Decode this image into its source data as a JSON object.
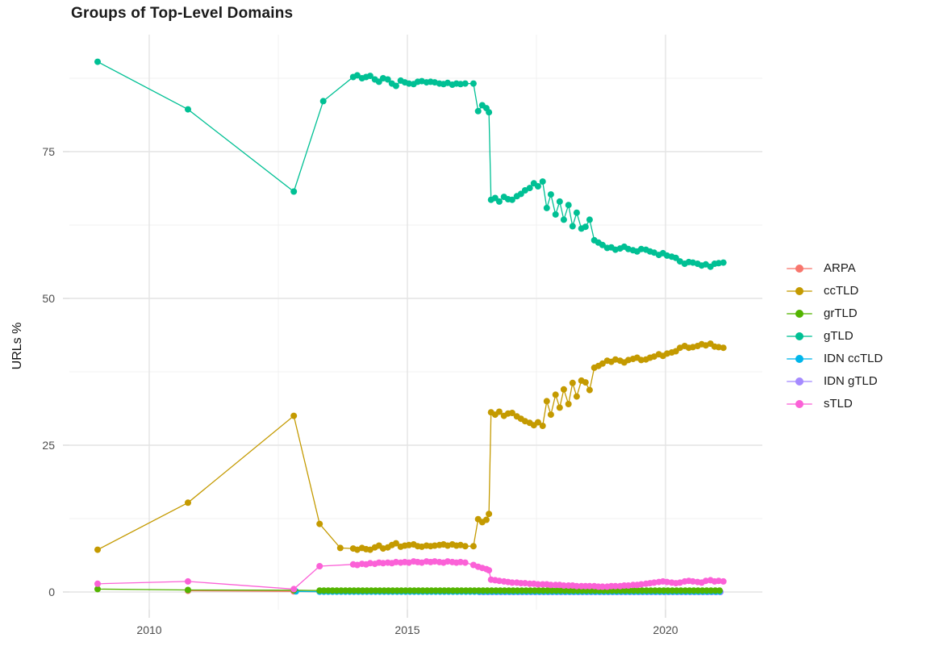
{
  "page": {
    "title": "Groups of Top-Level Domains"
  },
  "colors": {
    "background": "#FFFFFF",
    "grid_major": "#E4E4E4",
    "grid_minor": "#F1F1F1",
    "axis_tick": "#DCDCDC",
    "tick_label": "#4D4D4D",
    "title_text": "#1A1A1A"
  },
  "chart_data": {
    "type": "line",
    "title": "Groups of Top-Level Domains",
    "xlabel": "",
    "ylabel": "URLs %",
    "xlim": [
      2008.3,
      2021.9
    ],
    "ylim": [
      -3,
      95
    ],
    "x_ticks": [
      2010,
      2015,
      2020
    ],
    "y_ticks": [
      0,
      25,
      50,
      75
    ],
    "x_minor_gridlines": [
      2012.5,
      2017.5
    ],
    "y_minor_gridlines": [
      12.5,
      37.5,
      62.5,
      87.5
    ],
    "grid": "on",
    "legend_position": "right",
    "series": [
      {
        "name": "ARPA",
        "color": "#F8766D",
        "points": [
          [
            2010.75,
            0.2
          ],
          [
            2012.8,
            0.1
          ]
        ],
        "repeat": {
          "from": 2013.3,
          "to": 2021.12,
          "step": 0.0833,
          "value": 0.05
        }
      },
      {
        "name": "ccTLD",
        "color": "#C49A00",
        "points": [
          [
            2009,
            7.2
          ],
          [
            2010.75,
            15.2
          ],
          [
            2012.8,
            30.0
          ],
          [
            2013.3,
            11.6
          ],
          [
            2013.7,
            7.5
          ],
          [
            2013.95,
            7.4
          ],
          [
            2014.03,
            7.2
          ],
          [
            2014.12,
            7.5
          ],
          [
            2014.2,
            7.3
          ],
          [
            2014.28,
            7.2
          ],
          [
            2014.37,
            7.6
          ],
          [
            2014.45,
            7.9
          ],
          [
            2014.53,
            7.4
          ],
          [
            2014.62,
            7.6
          ],
          [
            2014.7,
            8.0
          ],
          [
            2014.78,
            8.3
          ],
          [
            2014.87,
            7.7
          ],
          [
            2014.95,
            7.9
          ],
          [
            2015.03,
            8.0
          ],
          [
            2015.12,
            8.1
          ],
          [
            2015.2,
            7.8
          ],
          [
            2015.28,
            7.7
          ],
          [
            2015.37,
            7.9
          ],
          [
            2015.45,
            7.8
          ],
          [
            2015.53,
            7.9
          ],
          [
            2015.62,
            8.0
          ],
          [
            2015.7,
            8.1
          ],
          [
            2015.78,
            7.9
          ],
          [
            2015.87,
            8.1
          ],
          [
            2015.95,
            7.9
          ],
          [
            2016.03,
            8.0
          ],
          [
            2016.12,
            7.8
          ],
          [
            2016.28,
            7.8
          ],
          [
            2016.37,
            12.4
          ],
          [
            2016.45,
            11.9
          ],
          [
            2016.53,
            12.3
          ],
          [
            2016.58,
            13.3
          ],
          [
            2016.62,
            30.6
          ],
          [
            2016.7,
            30.2
          ],
          [
            2016.78,
            30.7
          ],
          [
            2016.87,
            30.0
          ],
          [
            2016.95,
            30.4
          ],
          [
            2017.03,
            30.5
          ],
          [
            2017.12,
            29.9
          ],
          [
            2017.2,
            29.5
          ],
          [
            2017.28,
            29.1
          ],
          [
            2017.37,
            28.8
          ],
          [
            2017.45,
            28.4
          ],
          [
            2017.53,
            28.9
          ],
          [
            2017.62,
            28.3
          ],
          [
            2017.7,
            32.5
          ],
          [
            2017.78,
            30.2
          ],
          [
            2017.87,
            33.6
          ],
          [
            2017.95,
            31.4
          ],
          [
            2018.03,
            34.5
          ],
          [
            2018.12,
            32.0
          ],
          [
            2018.2,
            35.6
          ],
          [
            2018.28,
            33.3
          ],
          [
            2018.37,
            36.0
          ],
          [
            2018.45,
            35.7
          ],
          [
            2018.53,
            34.4
          ],
          [
            2018.62,
            38.2
          ],
          [
            2018.7,
            38.5
          ],
          [
            2018.78,
            38.9
          ],
          [
            2018.87,
            39.4
          ],
          [
            2018.95,
            39.2
          ],
          [
            2019.03,
            39.6
          ],
          [
            2019.12,
            39.4
          ],
          [
            2019.2,
            39.1
          ],
          [
            2019.28,
            39.5
          ],
          [
            2019.37,
            39.7
          ],
          [
            2019.45,
            39.9
          ],
          [
            2019.53,
            39.5
          ],
          [
            2019.62,
            39.6
          ],
          [
            2019.7,
            39.9
          ],
          [
            2019.78,
            40.1
          ],
          [
            2019.87,
            40.5
          ],
          [
            2019.95,
            40.2
          ],
          [
            2020.03,
            40.6
          ],
          [
            2020.12,
            40.8
          ],
          [
            2020.2,
            41.0
          ],
          [
            2020.28,
            41.6
          ],
          [
            2020.37,
            41.9
          ],
          [
            2020.45,
            41.6
          ],
          [
            2020.53,
            41.7
          ],
          [
            2020.62,
            41.9
          ],
          [
            2020.7,
            42.2
          ],
          [
            2020.78,
            42.0
          ],
          [
            2020.87,
            42.3
          ],
          [
            2020.95,
            41.8
          ],
          [
            2021.03,
            41.7
          ],
          [
            2021.12,
            41.6
          ]
        ]
      },
      {
        "name": "grTLD",
        "color": "#53B400",
        "points": [
          [
            2009,
            0.5
          ],
          [
            2010.75,
            0.35
          ],
          [
            2012.8,
            0.3
          ]
        ],
        "repeat": {
          "from": 2013.3,
          "to": 2021.12,
          "step": 0.0833,
          "value": 0.25
        }
      },
      {
        "name": "gTLD",
        "color": "#00C094",
        "points": [
          [
            2009,
            90.3
          ],
          [
            2010.75,
            82.2
          ],
          [
            2012.8,
            68.2
          ],
          [
            2013.37,
            83.6
          ],
          [
            2013.95,
            87.7
          ],
          [
            2014.03,
            88.0
          ],
          [
            2014.12,
            87.5
          ],
          [
            2014.2,
            87.7
          ],
          [
            2014.28,
            87.9
          ],
          [
            2014.37,
            87.3
          ],
          [
            2014.45,
            86.9
          ],
          [
            2014.53,
            87.5
          ],
          [
            2014.62,
            87.3
          ],
          [
            2014.7,
            86.6
          ],
          [
            2014.78,
            86.2
          ],
          [
            2014.87,
            87.1
          ],
          [
            2014.95,
            86.8
          ],
          [
            2015.03,
            86.6
          ],
          [
            2015.12,
            86.5
          ],
          [
            2015.2,
            86.9
          ],
          [
            2015.28,
            87.0
          ],
          [
            2015.37,
            86.8
          ],
          [
            2015.45,
            86.9
          ],
          [
            2015.53,
            86.8
          ],
          [
            2015.62,
            86.6
          ],
          [
            2015.7,
            86.5
          ],
          [
            2015.78,
            86.7
          ],
          [
            2015.87,
            86.4
          ],
          [
            2015.95,
            86.6
          ],
          [
            2016.03,
            86.5
          ],
          [
            2016.12,
            86.6
          ],
          [
            2016.28,
            86.6
          ],
          [
            2016.37,
            81.9
          ],
          [
            2016.45,
            82.9
          ],
          [
            2016.53,
            82.4
          ],
          [
            2016.58,
            81.7
          ],
          [
            2016.62,
            66.8
          ],
          [
            2016.7,
            67.1
          ],
          [
            2016.78,
            66.5
          ],
          [
            2016.87,
            67.3
          ],
          [
            2016.95,
            66.9
          ],
          [
            2017.03,
            66.8
          ],
          [
            2017.12,
            67.4
          ],
          [
            2017.2,
            67.8
          ],
          [
            2017.28,
            68.4
          ],
          [
            2017.37,
            68.8
          ],
          [
            2017.45,
            69.6
          ],
          [
            2017.53,
            69.1
          ],
          [
            2017.62,
            69.9
          ],
          [
            2017.7,
            65.4
          ],
          [
            2017.78,
            67.7
          ],
          [
            2017.87,
            64.3
          ],
          [
            2017.95,
            66.5
          ],
          [
            2018.03,
            63.4
          ],
          [
            2018.12,
            65.9
          ],
          [
            2018.2,
            62.3
          ],
          [
            2018.28,
            64.6
          ],
          [
            2018.37,
            61.9
          ],
          [
            2018.45,
            62.2
          ],
          [
            2018.53,
            63.4
          ],
          [
            2018.62,
            59.9
          ],
          [
            2018.7,
            59.5
          ],
          [
            2018.78,
            59.1
          ],
          [
            2018.87,
            58.6
          ],
          [
            2018.95,
            58.7
          ],
          [
            2019.03,
            58.3
          ],
          [
            2019.12,
            58.5
          ],
          [
            2019.2,
            58.8
          ],
          [
            2019.28,
            58.4
          ],
          [
            2019.37,
            58.2
          ],
          [
            2019.45,
            58.0
          ],
          [
            2019.53,
            58.4
          ],
          [
            2019.62,
            58.3
          ],
          [
            2019.7,
            58.0
          ],
          [
            2019.78,
            57.8
          ],
          [
            2019.87,
            57.4
          ],
          [
            2019.95,
            57.7
          ],
          [
            2020.03,
            57.3
          ],
          [
            2020.12,
            57.1
          ],
          [
            2020.2,
            56.9
          ],
          [
            2020.28,
            56.3
          ],
          [
            2020.37,
            55.9
          ],
          [
            2020.45,
            56.2
          ],
          [
            2020.53,
            56.1
          ],
          [
            2020.62,
            55.9
          ],
          [
            2020.7,
            55.6
          ],
          [
            2020.78,
            55.8
          ],
          [
            2020.87,
            55.4
          ],
          [
            2020.95,
            55.9
          ],
          [
            2021.03,
            56.0
          ],
          [
            2021.12,
            56.1
          ]
        ]
      },
      {
        "name": "IDN ccTLD",
        "color": "#00B6EB",
        "points": [
          [
            2012.84,
            0.1
          ]
        ],
        "repeat": {
          "from": 2013.3,
          "to": 2021.12,
          "step": 0.0833,
          "value": 0.05
        }
      },
      {
        "name": "IDN gTLD",
        "color": "#A58AFF",
        "points": [],
        "repeat": {
          "from": 2016.4,
          "to": 2021.12,
          "step": 0.0833,
          "value": 0.0
        }
      },
      {
        "name": "sTLD",
        "color": "#FB61D7",
        "points": [
          [
            2009,
            1.4
          ],
          [
            2010.75,
            1.8
          ],
          [
            2012.8,
            0.5
          ],
          [
            2013.3,
            4.4
          ],
          [
            2013.95,
            4.7
          ],
          [
            2014.03,
            4.6
          ],
          [
            2014.12,
            4.8
          ],
          [
            2014.2,
            4.7
          ],
          [
            2014.28,
            4.9
          ],
          [
            2014.37,
            4.8
          ],
          [
            2014.45,
            5.0
          ],
          [
            2014.53,
            4.9
          ],
          [
            2014.62,
            5.0
          ],
          [
            2014.7,
            4.9
          ],
          [
            2014.78,
            5.1
          ],
          [
            2014.87,
            5.0
          ],
          [
            2014.95,
            5.1
          ],
          [
            2015.03,
            5.0
          ],
          [
            2015.12,
            5.2
          ],
          [
            2015.2,
            5.1
          ],
          [
            2015.28,
            5.0
          ],
          [
            2015.37,
            5.2
          ],
          [
            2015.45,
            5.1
          ],
          [
            2015.53,
            5.2
          ],
          [
            2015.62,
            5.1
          ],
          [
            2015.7,
            5.0
          ],
          [
            2015.78,
            5.2
          ],
          [
            2015.87,
            5.1
          ],
          [
            2015.95,
            5.0
          ],
          [
            2016.03,
            5.1
          ],
          [
            2016.12,
            5.0
          ],
          [
            2016.28,
            4.6
          ],
          [
            2016.37,
            4.3
          ],
          [
            2016.45,
            4.1
          ],
          [
            2016.53,
            3.9
          ],
          [
            2016.58,
            3.7
          ],
          [
            2016.62,
            2.1
          ],
          [
            2016.7,
            2.0
          ],
          [
            2016.78,
            1.9
          ],
          [
            2016.87,
            1.8
          ],
          [
            2016.95,
            1.7
          ],
          [
            2017.03,
            1.6
          ],
          [
            2017.12,
            1.6
          ],
          [
            2017.2,
            1.5
          ],
          [
            2017.28,
            1.5
          ],
          [
            2017.37,
            1.4
          ],
          [
            2017.45,
            1.4
          ],
          [
            2017.53,
            1.3
          ],
          [
            2017.62,
            1.3
          ],
          [
            2017.7,
            1.3
          ],
          [
            2017.78,
            1.2
          ],
          [
            2017.87,
            1.2
          ],
          [
            2017.95,
            1.2
          ],
          [
            2018.03,
            1.1
          ],
          [
            2018.12,
            1.1
          ],
          [
            2018.2,
            1.1
          ],
          [
            2018.28,
            1.0
          ],
          [
            2018.37,
            1.0
          ],
          [
            2018.45,
            1.0
          ],
          [
            2018.53,
            1.0
          ],
          [
            2018.62,
            1.0
          ],
          [
            2018.7,
            0.9
          ],
          [
            2018.78,
            0.9
          ],
          [
            2018.87,
            0.9
          ],
          [
            2018.95,
            1.0
          ],
          [
            2019.03,
            1.0
          ],
          [
            2019.12,
            1.0
          ],
          [
            2019.2,
            1.1
          ],
          [
            2019.28,
            1.1
          ],
          [
            2019.37,
            1.2
          ],
          [
            2019.45,
            1.2
          ],
          [
            2019.53,
            1.3
          ],
          [
            2019.62,
            1.4
          ],
          [
            2019.7,
            1.5
          ],
          [
            2019.78,
            1.6
          ],
          [
            2019.87,
            1.7
          ],
          [
            2019.95,
            1.8
          ],
          [
            2020.03,
            1.7
          ],
          [
            2020.12,
            1.6
          ],
          [
            2020.2,
            1.5
          ],
          [
            2020.28,
            1.6
          ],
          [
            2020.37,
            1.8
          ],
          [
            2020.45,
            1.9
          ],
          [
            2020.53,
            1.8
          ],
          [
            2020.62,
            1.7
          ],
          [
            2020.7,
            1.6
          ],
          [
            2020.78,
            1.9
          ],
          [
            2020.87,
            2.0
          ],
          [
            2020.95,
            1.8
          ],
          [
            2021.03,
            1.9
          ],
          [
            2021.12,
            1.8
          ]
        ]
      }
    ]
  }
}
